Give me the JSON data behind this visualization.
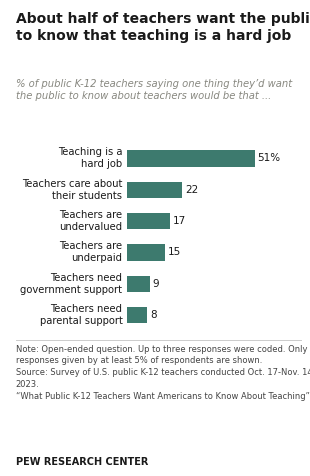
{
  "title": "About half of teachers want the public\nto know that teaching is a hard job",
  "subtitle": "% of public K-12 teachers saying one thing they’d want\nthe public to know about teachers would be that ...",
  "categories": [
    "Teaching is a\nhard job",
    "Teachers care about\ntheir students",
    "Teachers are\nundervalued",
    "Teachers are\nunderpaid",
    "Teachers need\ngovernment support",
    "Teachers need\nparental support"
  ],
  "values": [
    51,
    22,
    17,
    15,
    9,
    8
  ],
  "bar_color": "#3d7a6e",
  "value_labels": [
    "51%",
    "22",
    "17",
    "15",
    "9",
    "8"
  ],
  "note_line1": "Note: Open-ended question. Up to three responses were coded. Only",
  "note_line2": "responses given by at least 5% of respondents are shown.",
  "note_line3": "Source: Survey of U.S. public K-12 teachers conducted Oct. 17-Nov. 14,",
  "note_line4": "2023.",
  "note_line5": "“What Public K-12 Teachers Want Americans to Know About Teaching”",
  "footer": "PEW RESEARCH CENTER",
  "bg_color": "#ffffff",
  "title_color": "#1a1a1a",
  "subtitle_color": "#888880",
  "note_color": "#444444",
  "footer_color": "#1a1a1a",
  "xlim": [
    0,
    62
  ]
}
